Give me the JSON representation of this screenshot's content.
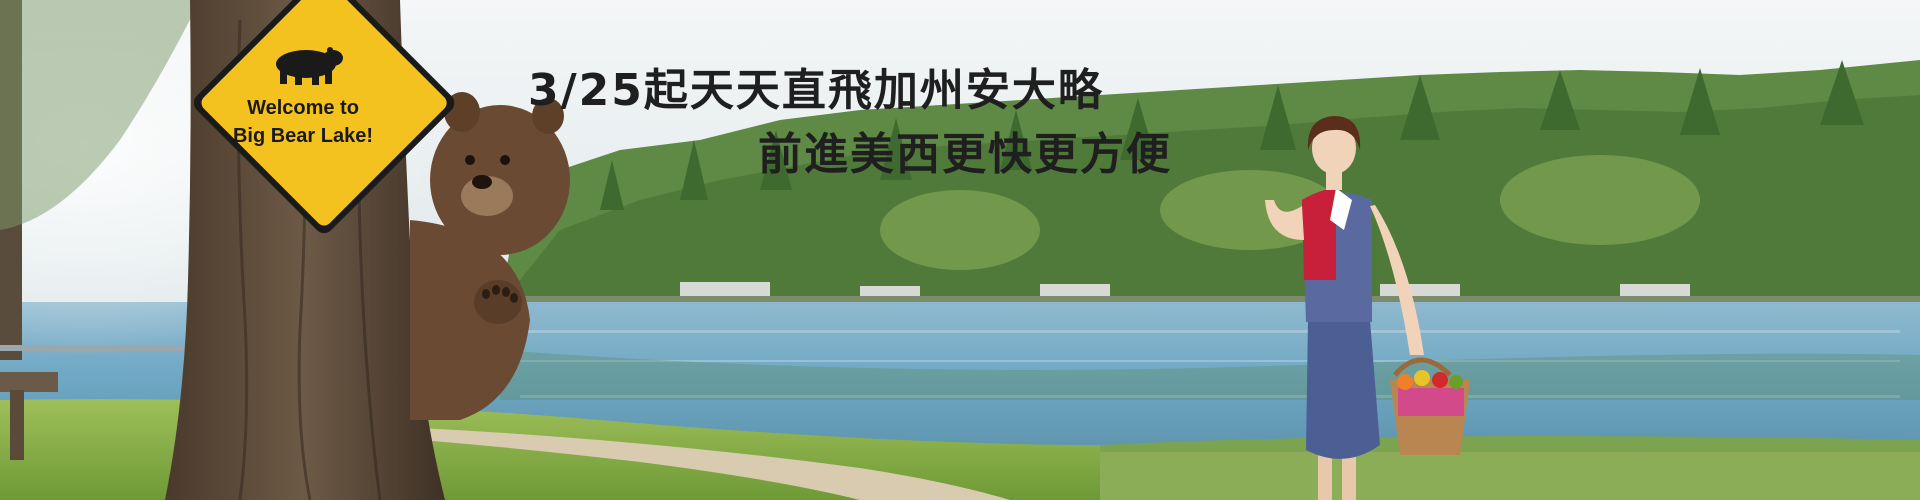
{
  "banner": {
    "headline_line1": "3/25起天天直飛加州安大略",
    "headline_line2": "前進美西更快更方便",
    "sign": {
      "line1": "Welcome to",
      "line2": "Big Bear Lake!",
      "icon": "bear-silhouette-icon"
    },
    "colors": {
      "sky": "#e9eef2",
      "lake": "#6fa8c4",
      "forest": "#4f7a3a",
      "sign_yellow": "#f4c21f",
      "uniform_red": "#c8203a",
      "uniform_blue": "#4c5f94"
    }
  }
}
